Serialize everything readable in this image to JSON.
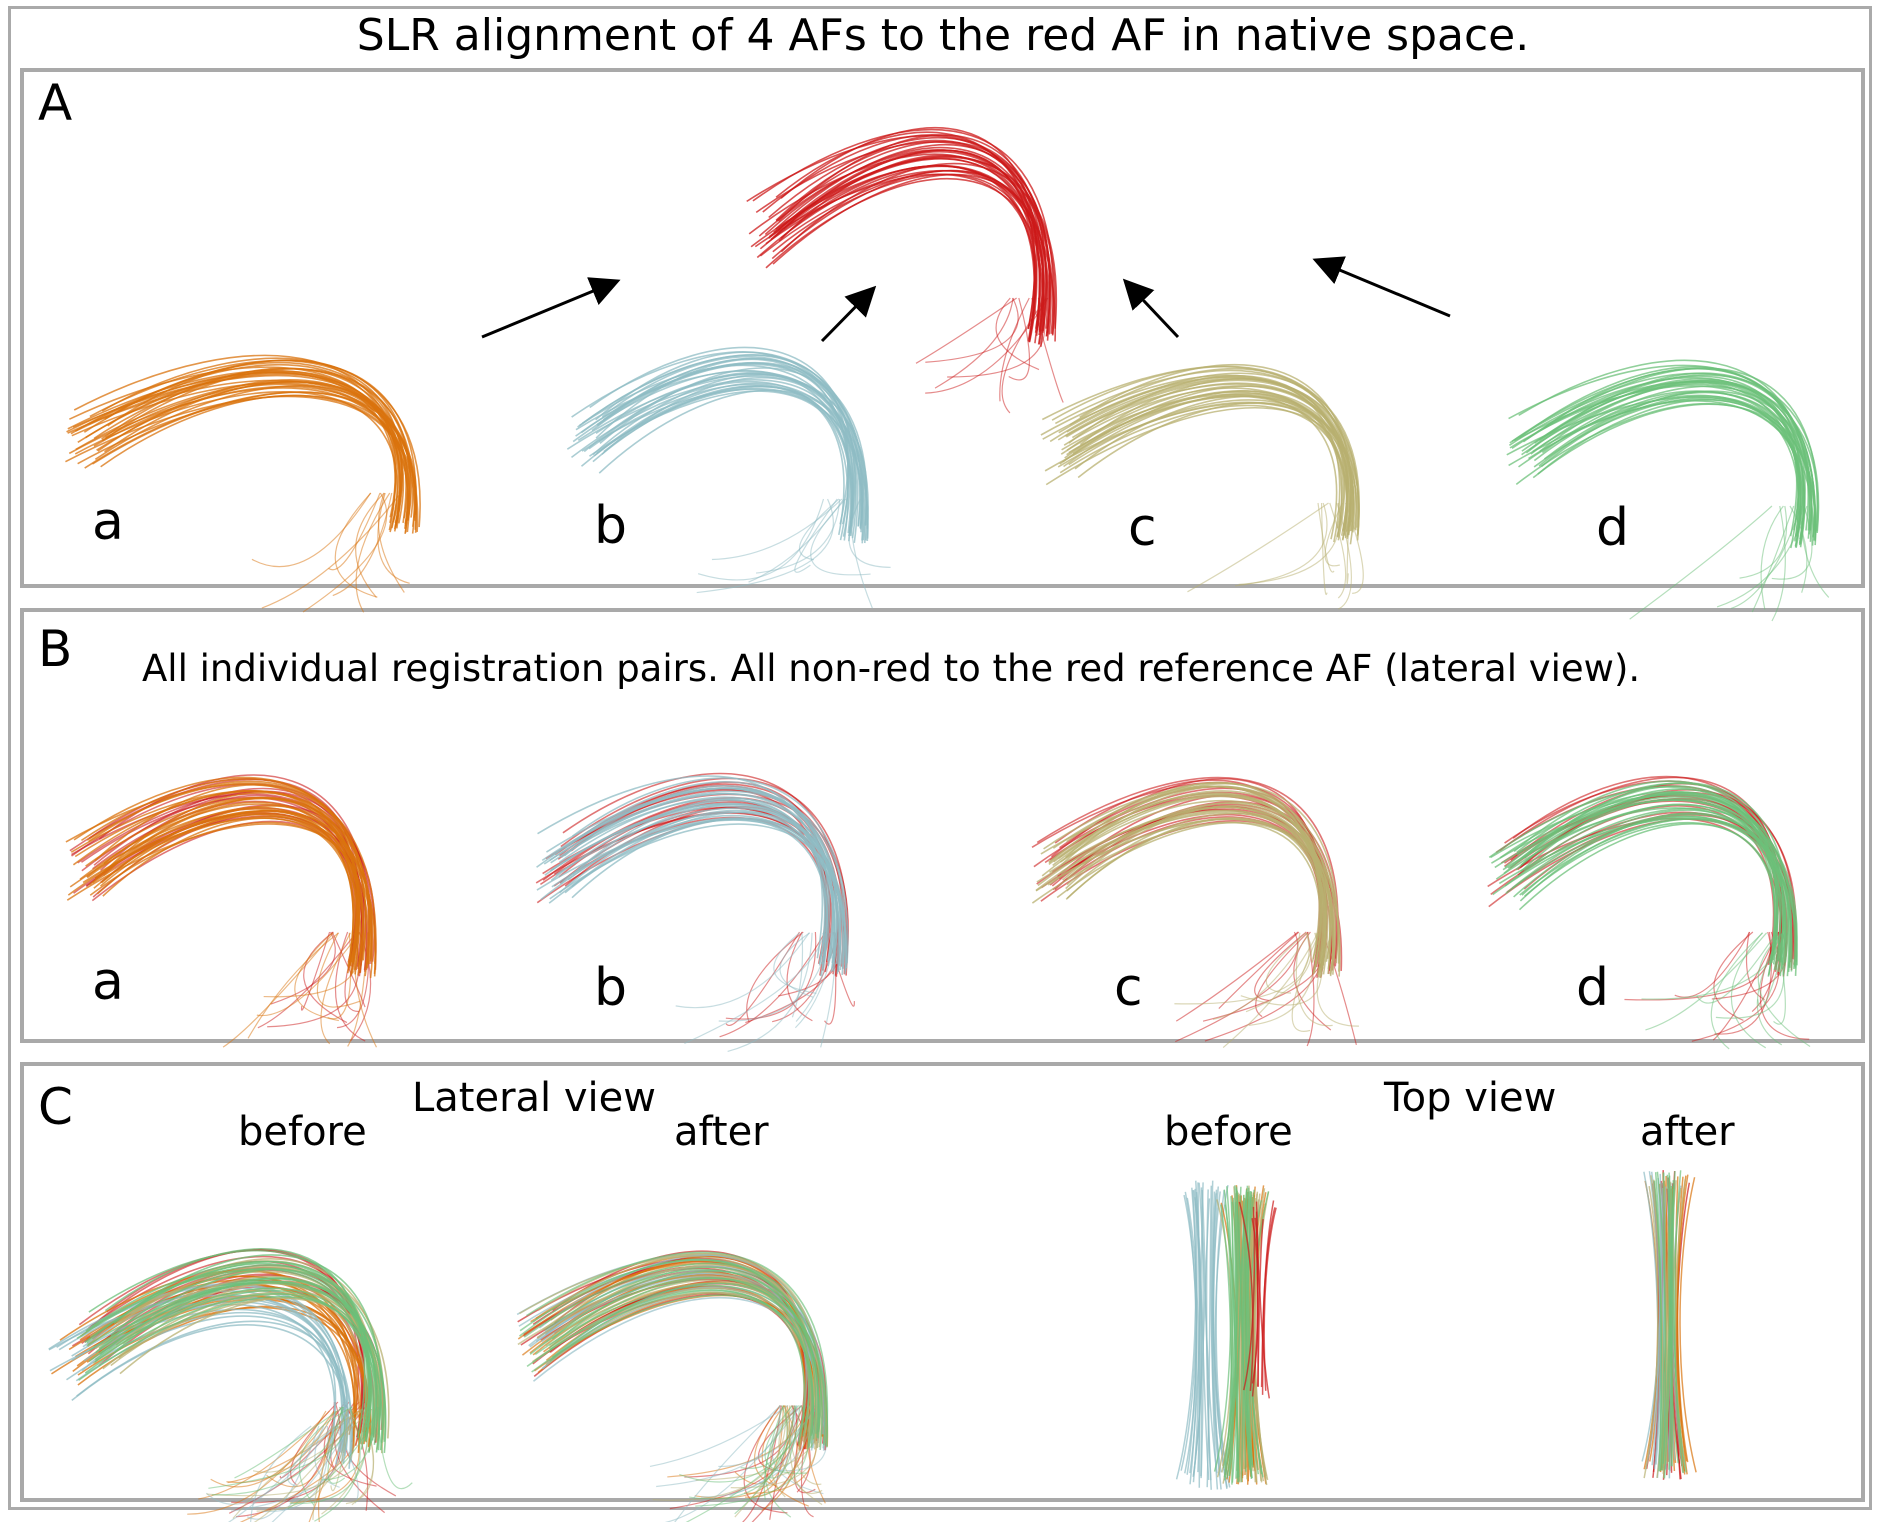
{
  "title": "SLR alignment of 4 AFs to the red AF in native space.",
  "panel_a": {
    "letter": "A",
    "labels": [
      "a",
      "b",
      "c",
      "d"
    ]
  },
  "panel_b": {
    "letter": "B",
    "caption": "All individual registration pairs. All non-red to the red reference AF (lateral view).",
    "labels": [
      "a",
      "b",
      "c",
      "d"
    ]
  },
  "panel_c": {
    "letter": "C",
    "lateral_view": "Lateral view",
    "top_view": "Top view",
    "before": "before",
    "after": "after"
  },
  "colors": {
    "reference": "#cc1a1a",
    "a": "#d9730d",
    "b": "#8fbcc4",
    "c": "#b8b070",
    "d": "#6cc07a",
    "border": "#aaaaaa"
  }
}
